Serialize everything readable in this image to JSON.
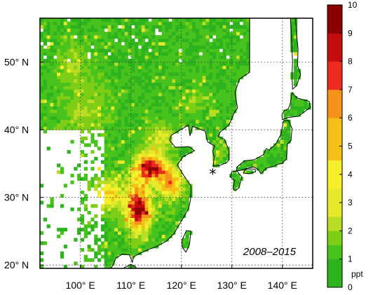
{
  "chart_data": {
    "type": "heatmap",
    "period": "2008–2015",
    "x_ticks": [
      {
        "value": 100,
        "label": "100° E"
      },
      {
        "value": 110,
        "label": "110° E"
      },
      {
        "value": 120,
        "label": "120° E"
      },
      {
        "value": 130,
        "label": "130° E"
      },
      {
        "value": 140,
        "label": "140° E"
      }
    ],
    "y_ticks": [
      {
        "value": 20,
        "label": "20° N"
      },
      {
        "value": 30,
        "label": "30° N"
      },
      {
        "value": 40,
        "label": "40° N"
      },
      {
        "value": 50,
        "label": "50° N"
      }
    ],
    "xlim": [
      92,
      146
    ],
    "ylim": [
      19.5,
      56.5
    ],
    "grid": true,
    "marker": {
      "label": "*",
      "lon": 126.2,
      "lat": 33.3
    },
    "colorbar": {
      "unit": "ppt",
      "range": [
        0,
        10
      ],
      "tick_labels": [
        "0",
        "1",
        "2",
        "3",
        "4",
        "5",
        "6",
        "7",
        "8",
        "9",
        "10"
      ],
      "colors": [
        "#2db31e",
        "#48c21c",
        "#7fce16",
        "#b9dd23",
        "#e6e82a",
        "#f6ef2a",
        "#f4c016",
        "#f5921a",
        "#ed2b1e",
        "#c40c0f",
        "#8b0000"
      ]
    }
  }
}
